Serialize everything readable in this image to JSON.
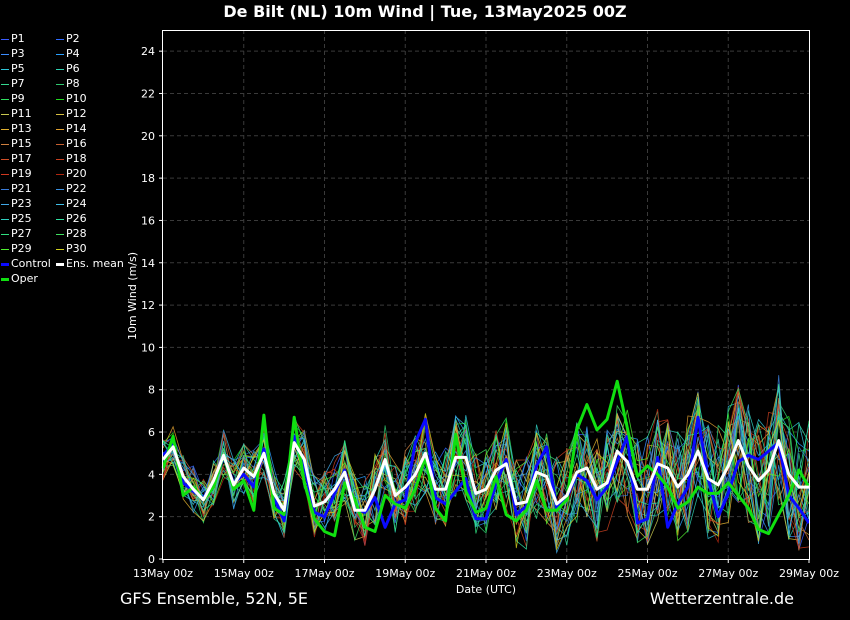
{
  "title": "De Bilt  (NL)  10m Wind | Tue, 13May2025 00Z",
  "footer": {
    "left": "GFS Ensemble, 52N, 5E",
    "right": "Wetterzentrale.de"
  },
  "legend": [
    {
      "label": "P1",
      "color": "#3a5cff"
    },
    {
      "label": "P2",
      "color": "#2f6bff"
    },
    {
      "label": "P3",
      "color": "#3b8cff"
    },
    {
      "label": "P4",
      "color": "#2aa0ff"
    },
    {
      "label": "P5",
      "color": "#2fc6d8"
    },
    {
      "label": "P6",
      "color": "#2fd0b0"
    },
    {
      "label": "P7",
      "color": "#34d890"
    },
    {
      "label": "P8",
      "color": "#30c870"
    },
    {
      "label": "P9",
      "color": "#2fe060"
    },
    {
      "label": "P10",
      "color": "#20d820"
    },
    {
      "label": "P11",
      "color": "#c8c850"
    },
    {
      "label": "P12",
      "color": "#d8c040"
    },
    {
      "label": "P13",
      "color": "#e0b030"
    },
    {
      "label": "P14",
      "color": "#e0a030"
    },
    {
      "label": "P15",
      "color": "#d08040"
    },
    {
      "label": "P16",
      "color": "#c86030"
    },
    {
      "label": "P17",
      "color": "#d05028"
    },
    {
      "label": "P18",
      "color": "#c84020"
    },
    {
      "label": "P19",
      "color": "#d03820"
    },
    {
      "label": "P20",
      "color": "#b02810"
    },
    {
      "label": "P21",
      "color": "#3a7cd8"
    },
    {
      "label": "P22",
      "color": "#3a90e0"
    },
    {
      "label": "P23",
      "color": "#40a8e8"
    },
    {
      "label": "P24",
      "color": "#40c0e8"
    },
    {
      "label": "P25",
      "color": "#30d0c0"
    },
    {
      "label": "P26",
      "color": "#30e0a0"
    },
    {
      "label": "P27",
      "color": "#30e080"
    },
    {
      "label": "P28",
      "color": "#40e060"
    },
    {
      "label": "P29",
      "color": "#50f030"
    },
    {
      "label": "P30",
      "color": "#d0d020"
    },
    {
      "label": "Control",
      "color": "#0a0aff"
    },
    {
      "label": "Ens. mean",
      "color": "#ffffff"
    },
    {
      "label": "Oper",
      "color": "#10e010"
    }
  ],
  "chart_data": {
    "type": "line",
    "title": "De Bilt  (NL)  10m Wind | Tue, 13May2025 00Z",
    "xlabel": "Date (UTC)",
    "ylabel": "10m Wind (m/s)",
    "ylim": [
      0,
      25
    ],
    "yticks": [
      0,
      2,
      4,
      6,
      8,
      10,
      12,
      14,
      16,
      18,
      20,
      22,
      24
    ],
    "xlim": [
      "2025-05-13 00Z",
      "2025-05-29 00Z"
    ],
    "xtick_labels": [
      "13May 00z",
      "15May 00z",
      "17May 00z",
      "19May 00z",
      "21May 00z",
      "23May 00z",
      "25May 00z",
      "27May 00z",
      "29May 00z"
    ],
    "grid": true,
    "x": [
      "13May 00z",
      "13May 06z",
      "13May 12z",
      "13May 18z",
      "14May 00z",
      "14May 06z",
      "14May 12z",
      "14May 18z",
      "15May 00z",
      "15May 06z",
      "15May 12z",
      "15May 18z",
      "16May 00z",
      "16May 06z",
      "16May 12z",
      "16May 18z",
      "17May 00z",
      "17May 06z",
      "17May 12z",
      "17May 18z",
      "18May 00z",
      "18May 06z",
      "18May 12z",
      "18May 18z",
      "19May 00z",
      "19May 06z",
      "19May 12z",
      "19May 18z",
      "20May 00z",
      "20May 06z",
      "20May 12z",
      "20May 18z",
      "21May 00z",
      "21May 06z",
      "21May 12z",
      "21May 18z",
      "22May 00z",
      "22May 06z",
      "22May 12z",
      "22May 18z",
      "23May 00z",
      "23May 06z",
      "23May 12z",
      "23May 18z",
      "24May 00z",
      "24May 06z",
      "24May 12z",
      "24May 18z",
      "25May 00z",
      "25May 06z",
      "25May 12z",
      "25May 18z",
      "26May 00z",
      "26May 06z",
      "26May 12z",
      "26May 18z",
      "27May 00z",
      "27May 06z",
      "27May 12z",
      "27May 18z",
      "28May 00z",
      "28May 06z",
      "28May 12z",
      "28May 18z",
      "29May 00z"
    ],
    "series": [
      {
        "name": "Ens. mean",
        "values": [
          4.7,
          5.3,
          3.9,
          3.3,
          2.8,
          3.7,
          4.9,
          3.5,
          4.3,
          3.9,
          5.0,
          3.1,
          2.3,
          5.5,
          4.7,
          2.5,
          2.7,
          3.3,
          4.1,
          2.3,
          2.3,
          3.3,
          4.7,
          3.0,
          3.4,
          4.0,
          5.0,
          3.3,
          3.3,
          4.8,
          4.8,
          3.1,
          3.3,
          4.2,
          4.5,
          2.6,
          2.7,
          4.1,
          3.9,
          2.6,
          3.0,
          4.1,
          4.3,
          3.3,
          3.6,
          5.1,
          4.6,
          3.3,
          3.3,
          4.5,
          4.3,
          3.4,
          4.0,
          5.1,
          3.8,
          3.5,
          4.4,
          5.6,
          4.4,
          3.7,
          4.2,
          5.6,
          4.0,
          3.4,
          3.4
        ]
      },
      {
        "name": "Oper",
        "values": [
          4.3,
          5.8,
          3.0,
          3.4,
          2.8,
          3.4,
          4.9,
          3.3,
          3.7,
          2.3,
          6.8,
          2.4,
          2.1,
          6.7,
          3.6,
          1.9,
          1.3,
          1.1,
          3.6,
          2.8,
          1.5,
          1.3,
          3.0,
          2.6,
          2.4,
          3.3,
          4.8,
          2.4,
          1.8,
          5.9,
          3.2,
          2.2,
          2.4,
          3.9,
          2.1,
          1.8,
          2.3,
          3.7,
          2.3,
          2.3,
          2.8,
          6.1,
          7.3,
          6.1,
          6.6,
          8.4,
          6.2,
          3.9,
          4.4,
          4.0,
          3.4,
          2.4,
          2.7,
          3.4,
          3.1,
          3.1,
          3.6,
          3.0,
          2.4,
          1.4,
          1.2,
          2.1,
          3.0,
          4.2,
          3.4
        ]
      },
      {
        "name": "Control",
        "values": [
          4.9,
          5.4,
          3.6,
          3.2,
          2.9,
          3.5,
          4.8,
          3.6,
          4.0,
          3.4,
          5.2,
          2.9,
          1.8,
          5.8,
          4.4,
          2.2,
          2.0,
          3.1,
          4.2,
          2.4,
          2.2,
          2.9,
          1.5,
          2.6,
          2.8,
          5.5,
          6.6,
          2.9,
          2.6,
          3.2,
          3.8,
          1.9,
          1.9,
          3.6,
          4.7,
          2.1,
          2.5,
          4.4,
          5.3,
          2.4,
          2.9,
          4.0,
          3.7,
          2.8,
          3.4,
          4.6,
          5.8,
          1.7,
          1.9,
          4.8,
          1.5,
          2.6,
          3.4,
          6.7,
          3.8,
          2.0,
          3.1,
          4.6,
          4.9,
          4.7,
          5.1,
          5.5,
          3.0,
          2.4,
          1.7
        ]
      }
    ],
    "ensemble_members": 30
  }
}
